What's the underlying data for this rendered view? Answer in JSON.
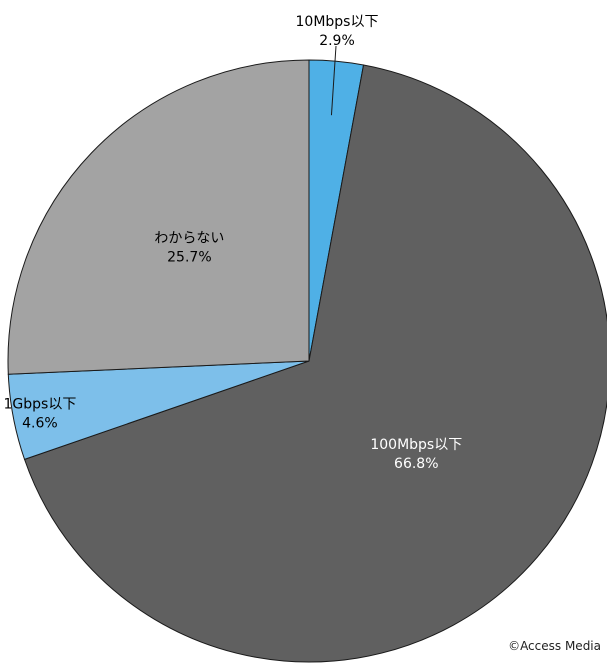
{
  "chart_data": {
    "type": "pie",
    "title": "",
    "start_angle_deg": 0,
    "direction": "clockwise",
    "slices": [
      {
        "label": "10Mbps以下",
        "value": 2.9,
        "value_text": "2.9%",
        "color": "#4fb0e6",
        "label_color": "#000000"
      },
      {
        "label": "100Mbps以下",
        "value": 66.8,
        "value_text": "66.8%",
        "color": "#606060",
        "label_color": "#ffffff"
      },
      {
        "label": "1Gbps以下",
        "value": 4.6,
        "value_text": "4.6%",
        "color": "#7dbfea",
        "label_color": "#000000"
      },
      {
        "label": "わからない",
        "value": 25.7,
        "value_text": "25.7%",
        "color": "#a3a3a3",
        "label_color": "#000000"
      }
    ]
  },
  "credit": "©Access Media"
}
